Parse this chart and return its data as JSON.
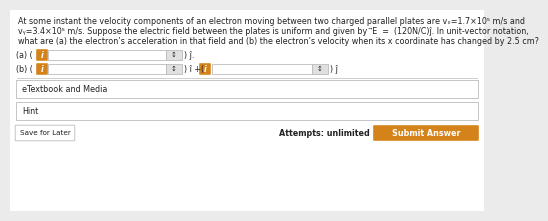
{
  "bg_color": "#ebebeb",
  "white": "#ffffff",
  "orange": "#d4821a",
  "light_gray": "#e0e0e0",
  "border_gray": "#bbbbbb",
  "dark_text": "#222222",
  "gray_text": "#555555",
  "line1": "At some instant the velocity components of an electron moving between two charged parallel plates are vₓ=1.7×10⁵ m/s and",
  "line2": "vᵧ=3.4×10⁵ m/s. Suppose the electric field between the plates is uniform and given by  ⃗E  =  (120N/C)ĵ. In unit-vector notation,",
  "line3": "what are (a) the electron’s acceleration in that field and (b) the electron’s velocity when its x coordinate has changed by 2.5 cm?",
  "label_a": "(a) (",
  "label_b": "(b) (",
  "suffix_a": ") ĵ.",
  "suffix_b1": ") î +(",
  "suffix_b2": ") ĵ",
  "etextbook": "eTextbook and Media",
  "hint": "Hint",
  "save": "Save for Later",
  "attempts": "Attempts: unlimited",
  "submit": "Submit Answer",
  "content_bg": "#f7f7f7"
}
